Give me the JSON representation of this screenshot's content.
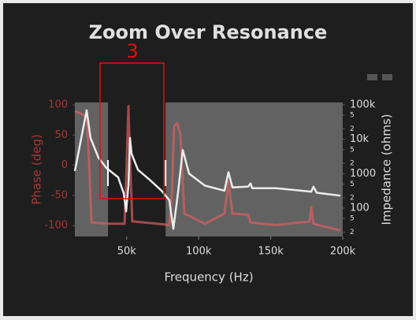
{
  "chart_data": {
    "type": "line",
    "title": "Zoom Over Resonance",
    "annotation": "3",
    "xlabel": "Frequency (Hz)",
    "ylabel": "Phase (deg)",
    "y2label": "Impedance (ohms)",
    "xlim": [
      14000,
      200000
    ],
    "xticks": [
      {
        "value": 50000,
        "label": "50k"
      },
      {
        "value": 100000,
        "label": "100k"
      },
      {
        "value": 150000,
        "label": "150k"
      },
      {
        "value": 200000,
        "label": "200k"
      }
    ],
    "ylim": [
      -118,
      104
    ],
    "yticks": [
      100,
      50,
      0,
      -50,
      -100
    ],
    "y2lim": [
      15,
      117000
    ],
    "y2scale": "log",
    "y2ticks": [
      {
        "value": 100000,
        "label": "100k"
      },
      {
        "value": 50000,
        "label": "5"
      },
      {
        "value": 20000,
        "label": "2"
      },
      {
        "value": 10000,
        "label": "10k"
      },
      {
        "value": 5000,
        "label": "5"
      },
      {
        "value": 2000,
        "label": "2"
      },
      1000,
      {
        "value": 500,
        "label": "5"
      },
      {
        "value": 200,
        "label": "2"
      },
      100,
      {
        "value": 50,
        "label": "5"
      },
      {
        "value": 20,
        "label": "2"
      }
    ],
    "selection": [
      37000,
      77000
    ],
    "series": [
      {
        "name": "Phase",
        "color": "#d9605f",
        "axis": "y",
        "x": [
          14000,
          19500,
          22200,
          23800,
          25500,
          38600,
          48500,
          50100,
          51200,
          52300,
          53900,
          71400,
          79600,
          81300,
          82900,
          85100,
          87300,
          90000,
          104300,
          117900,
          120700,
          123400,
          134300,
          136000,
          153500,
          177000,
          178100,
          179700,
          198300
        ],
        "values": [
          90,
          84,
          77,
          12,
          -95,
          -97,
          -97,
          12,
          98,
          12,
          -93,
          -97,
          -99,
          -54,
          64,
          70,
          51,
          -80,
          -97,
          -80,
          -27,
          -80,
          -82,
          -95,
          -99,
          -93,
          -69,
          -97,
          -108
        ]
      },
      {
        "name": "Impedance",
        "color": "#ececec",
        "axis": "y2",
        "x": [
          14000,
          22200,
          24900,
          30400,
          35900,
          44100,
          47900,
          49600,
          51200,
          52300,
          53400,
          57800,
          66000,
          74200,
          79600,
          82400,
          85700,
          88900,
          93300,
          104300,
          117900,
          120700,
          123400,
          134300,
          136000,
          137100,
          153500,
          178100,
          179700,
          181900,
          198300
        ],
        "values": [
          1190,
          69000,
          10900,
          2900,
          1470,
          780,
          270,
          80,
          460,
          10900,
          3800,
          1300,
          660,
          320,
          170,
          25,
          300,
          4900,
          1000,
          450,
          320,
          1100,
          400,
          420,
          520,
          380,
          380,
          300,
          420,
          280,
          230
        ]
      }
    ]
  }
}
